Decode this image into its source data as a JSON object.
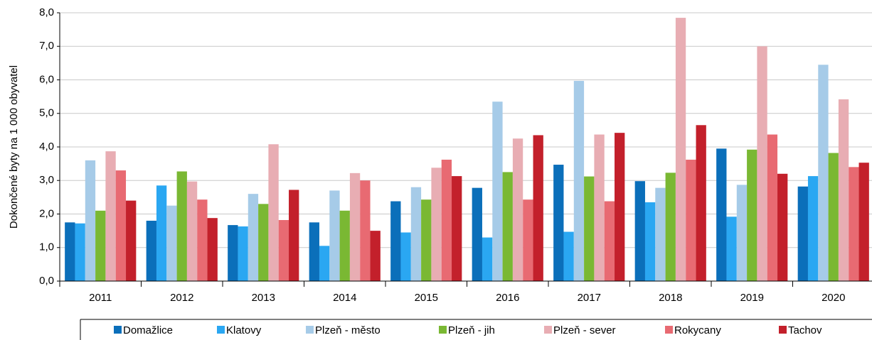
{
  "chart_data": {
    "type": "bar",
    "y_label": "Dokončené byty na 1 000 obyvatel",
    "categories": [
      "2011",
      "2012",
      "2013",
      "2014",
      "2015",
      "2016",
      "2017",
      "2018",
      "2019",
      "2020"
    ],
    "series": [
      {
        "name": "Domažlice",
        "color": "#0b6fba",
        "values": [
          1.75,
          1.8,
          1.67,
          1.75,
          2.38,
          2.78,
          3.47,
          2.98,
          3.95,
          2.82
        ]
      },
      {
        "name": "Klatovy",
        "color": "#2aa7f2",
        "values": [
          1.72,
          2.85,
          1.63,
          1.05,
          1.45,
          1.3,
          1.47,
          2.35,
          1.92,
          3.13
        ]
      },
      {
        "name": "Plzeň - město",
        "color": "#a6cbe8",
        "values": [
          3.6,
          2.25,
          2.6,
          2.7,
          2.8,
          5.35,
          5.97,
          2.78,
          2.87,
          6.45
        ]
      },
      {
        "name": "Plzeň - jih",
        "color": "#7ab833",
        "values": [
          2.1,
          3.27,
          2.3,
          2.1,
          2.43,
          3.25,
          3.12,
          3.23,
          3.92,
          3.82
        ]
      },
      {
        "name": "Plzeň - sever",
        "color": "#e8adb3",
        "values": [
          3.87,
          2.97,
          4.08,
          3.22,
          3.38,
          4.25,
          4.37,
          7.85,
          7.0,
          5.42
        ]
      },
      {
        "name": "Rokycany",
        "color": "#e86a72",
        "values": [
          3.3,
          2.43,
          1.82,
          3.0,
          3.62,
          2.43,
          2.38,
          3.62,
          4.37,
          3.4
        ]
      },
      {
        "name": "Tachov",
        "color": "#c3202b",
        "values": [
          2.4,
          1.88,
          2.72,
          1.5,
          3.13,
          4.35,
          4.42,
          4.65,
          3.2,
          3.53
        ]
      }
    ],
    "ylim": [
      0,
      8
    ],
    "yticks": [
      {
        "value": 0,
        "label": "0,0"
      },
      {
        "value": 1,
        "label": "1,0"
      },
      {
        "value": 2,
        "label": "2,0"
      },
      {
        "value": 3,
        "label": "3,0"
      },
      {
        "value": 4,
        "label": "4,0"
      },
      {
        "value": 5,
        "label": "5,0"
      },
      {
        "value": 6,
        "label": "6,0"
      },
      {
        "value": 7,
        "label": "7,0"
      },
      {
        "value": 8,
        "label": "8,0"
      }
    ],
    "grid": true,
    "legend": "bottom"
  }
}
